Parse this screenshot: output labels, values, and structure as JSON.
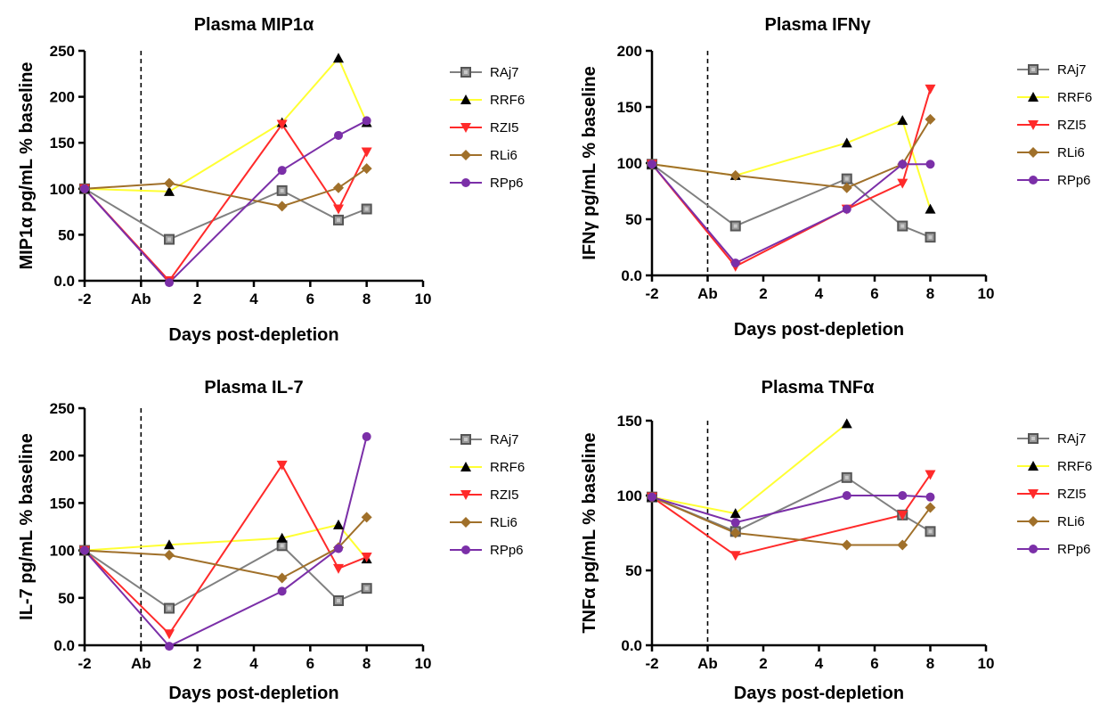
{
  "chart_data": [
    {
      "type": "line",
      "title": "Plasma MIP1α",
      "xlabel": "Days post-depletion",
      "ylabel": "MIP1α pg/mL % baseline",
      "xlim": [
        -2,
        10
      ],
      "ylim": [
        0,
        250
      ],
      "xticks": [
        "-2",
        "Ab",
        "2",
        "4",
        "6",
        "8",
        "10"
      ],
      "yticks": [
        "0.0",
        "50",
        "100",
        "150",
        "200",
        "250"
      ],
      "antibody_day": 0,
      "legend": "right",
      "series": [
        {
          "name": "RAj7",
          "color": "#808080",
          "marker": "square",
          "x": [
            -2,
            1,
            5,
            7,
            8
          ],
          "y": [
            100,
            45,
            98,
            66,
            78
          ]
        },
        {
          "name": "RRF6",
          "color": "#ffff33",
          "marker": "triangle",
          "x": [
            -2,
            1,
            5,
            7,
            8
          ],
          "y": [
            100,
            97,
            172,
            242,
            172
          ]
        },
        {
          "name": "RZI5",
          "color": "#ff2a2a",
          "marker": "triangle-down",
          "x": [
            -2,
            1,
            5,
            7,
            8
          ],
          "y": [
            100,
            0,
            170,
            78,
            140
          ]
        },
        {
          "name": "RLi6",
          "color": "#a0702a",
          "marker": "diamond",
          "x": [
            -2,
            1,
            5,
            7,
            8
          ],
          "y": [
            100,
            106,
            81,
            101,
            122
          ]
        },
        {
          "name": "RPp6",
          "color": "#7b2fa8",
          "marker": "circle",
          "x": [
            -2,
            1,
            5,
            7,
            8
          ],
          "y": [
            100,
            -2,
            120,
            158,
            174
          ]
        }
      ]
    },
    {
      "type": "line",
      "title": "Plasma IFNγ",
      "xlabel": "Days post-depletion",
      "ylabel": "IFNγ pg/mL % baseline",
      "xlim": [
        -2,
        10
      ],
      "ylim": [
        0,
        200
      ],
      "xticks": [
        "-2",
        "Ab",
        "2",
        "4",
        "6",
        "8",
        "10"
      ],
      "yticks": [
        "0.0",
        "50",
        "100",
        "150",
        "200"
      ],
      "antibody_day": 0,
      "legend": "right",
      "series": [
        {
          "name": "RAj7",
          "color": "#808080",
          "marker": "square",
          "x": [
            -2,
            1,
            5,
            7,
            8
          ],
          "y": [
            99,
            44,
            86,
            44,
            34
          ]
        },
        {
          "name": "RRF6",
          "color": "#ffff33",
          "marker": "triangle",
          "x": [
            -2,
            1,
            5,
            7,
            8
          ],
          "y": [
            99,
            89,
            118,
            138,
            59
          ]
        },
        {
          "name": "RZI5",
          "color": "#ff2a2a",
          "marker": "triangle-down",
          "x": [
            -2,
            1,
            5,
            7,
            8
          ],
          "y": [
            99,
            8,
            59,
            82,
            166
          ]
        },
        {
          "name": "RLi6",
          "color": "#a0702a",
          "marker": "diamond",
          "x": [
            -2,
            1,
            5,
            7,
            8
          ],
          "y": [
            99,
            89,
            78,
            99,
            139
          ]
        },
        {
          "name": "RPp6",
          "color": "#7b2fa8",
          "marker": "circle",
          "x": [
            -2,
            1,
            5,
            7,
            8
          ],
          "y": [
            99,
            11,
            59,
            99,
            99
          ]
        }
      ]
    },
    {
      "type": "line",
      "title": "Plasma IL-7",
      "xlabel": "Days post-depletion",
      "ylabel": "IL-7 pg/mL % baseline",
      "xlim": [
        -2,
        10
      ],
      "ylim": [
        0,
        250
      ],
      "xticks": [
        "-2",
        "Ab",
        "2",
        "4",
        "6",
        "8",
        "10"
      ],
      "yticks": [
        "0.0",
        "50",
        "100",
        "150",
        "200",
        "250"
      ],
      "antibody_day": 0,
      "legend": "right",
      "series": [
        {
          "name": "RAj7",
          "color": "#808080",
          "marker": "square",
          "x": [
            -2,
            1,
            5,
            7,
            8
          ],
          "y": [
            100,
            39,
            105,
            47,
            60
          ]
        },
        {
          "name": "RRF6",
          "color": "#ffff33",
          "marker": "triangle",
          "x": [
            -2,
            1,
            5,
            7,
            8
          ],
          "y": [
            100,
            106,
            113,
            127,
            91
          ]
        },
        {
          "name": "RZI5",
          "color": "#ff2a2a",
          "marker": "triangle-down",
          "x": [
            -2,
            1,
            5,
            7,
            8
          ],
          "y": [
            100,
            12,
            190,
            81,
            93
          ]
        },
        {
          "name": "RLi6",
          "color": "#a0702a",
          "marker": "diamond",
          "x": [
            -2,
            1,
            5,
            7,
            8
          ],
          "y": [
            100,
            95,
            71,
            103,
            135
          ]
        },
        {
          "name": "RPp6",
          "color": "#7b2fa8",
          "marker": "circle",
          "x": [
            -2,
            1,
            5,
            7,
            8
          ],
          "y": [
            100,
            -1,
            57,
            102,
            220
          ]
        }
      ]
    },
    {
      "type": "line",
      "title": "Plasma TNFα",
      "xlabel": "Days post-depletion",
      "ylabel": "TNFα pg/mL % baseline",
      "xlim": [
        -2,
        10
      ],
      "ylim": [
        0,
        150
      ],
      "xticks": [
        "-2",
        "Ab",
        "2",
        "4",
        "6",
        "8",
        "10"
      ],
      "yticks": [
        "0.0",
        "50",
        "100",
        "150"
      ],
      "antibody_day": 0,
      "legend": "right",
      "series": [
        {
          "name": "RAj7",
          "color": "#808080",
          "marker": "square",
          "x": [
            -2,
            1,
            5,
            7,
            8
          ],
          "y": [
            99,
            76,
            112,
            87,
            76
          ]
        },
        {
          "name": "RRF6",
          "color": "#ffff33",
          "marker": "triangle",
          "x": [
            -2,
            1,
            5
          ],
          "y": [
            99,
            88,
            148
          ]
        },
        {
          "name": "RZI5",
          "color": "#ff2a2a",
          "marker": "triangle-down",
          "x": [
            -2,
            1,
            7,
            8
          ],
          "y": [
            99,
            60,
            87,
            114
          ]
        },
        {
          "name": "RLi6",
          "color": "#a0702a",
          "marker": "diamond",
          "x": [
            -2,
            1,
            5,
            7,
            8
          ],
          "y": [
            99,
            75,
            67,
            67,
            92
          ]
        },
        {
          "name": "RPp6",
          "color": "#7b2fa8",
          "marker": "circle",
          "x": [
            -2,
            1,
            5,
            7,
            8
          ],
          "y": [
            99,
            82,
            100,
            100,
            99
          ]
        }
      ]
    }
  ]
}
